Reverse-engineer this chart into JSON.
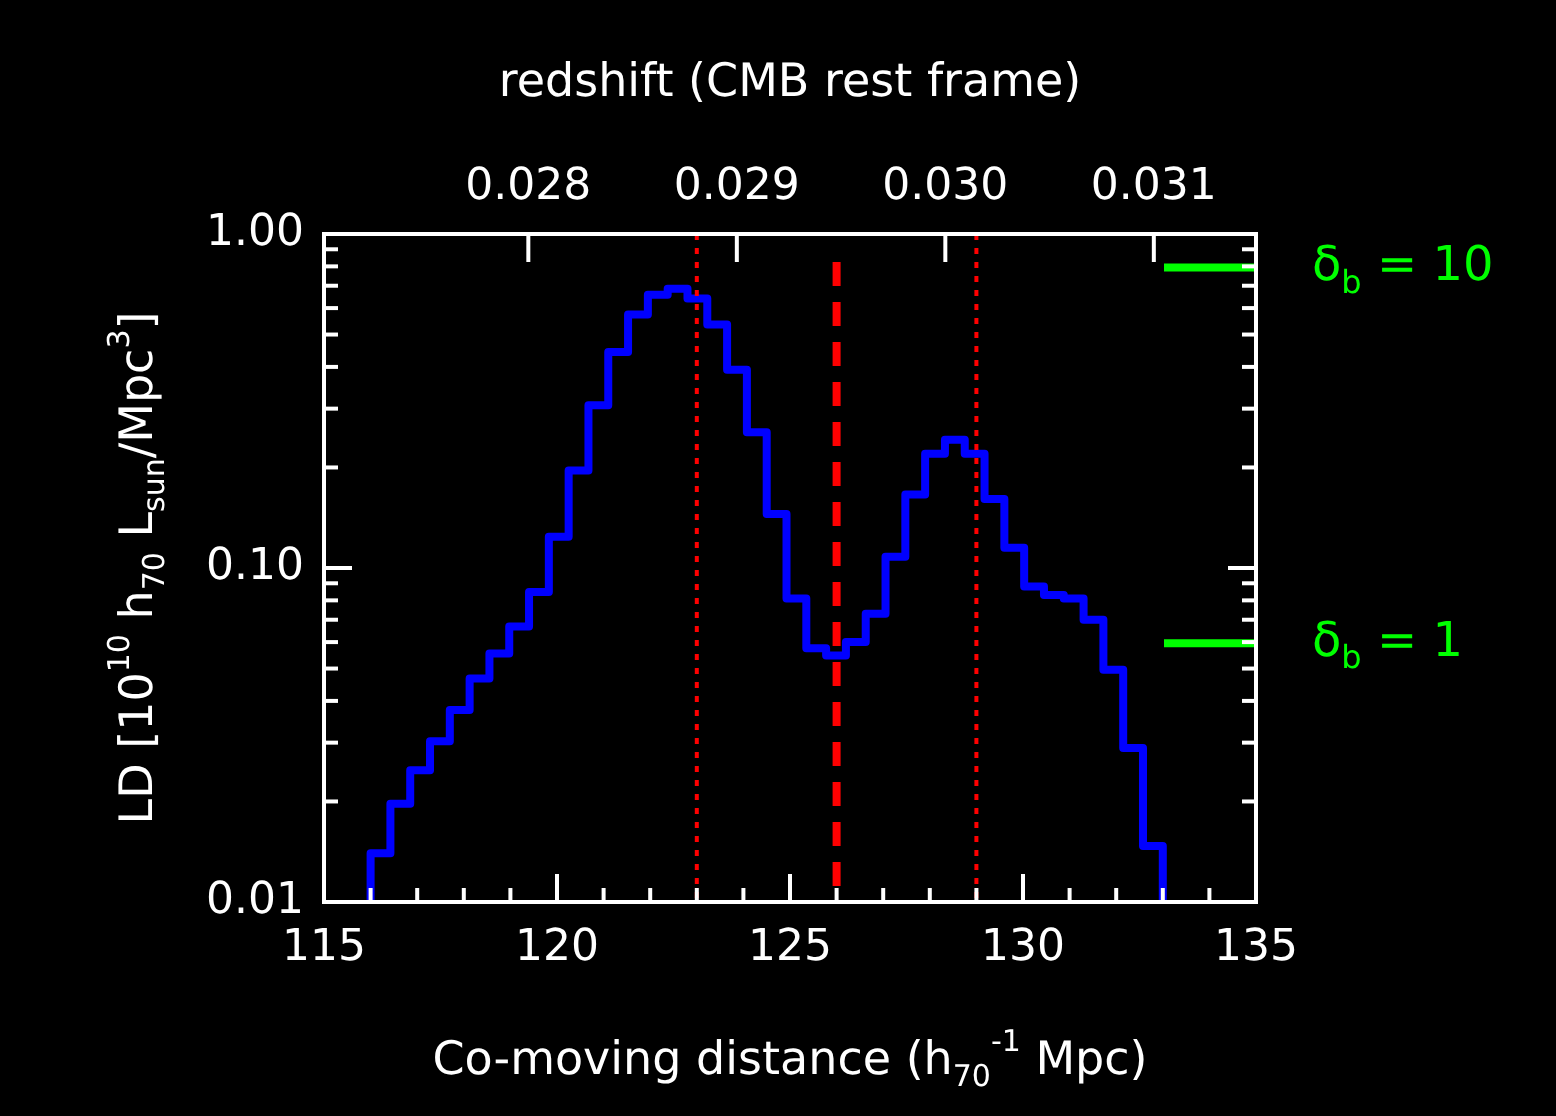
{
  "chart_data": {
    "type": "histogram",
    "xlabel": "Co-moving distance (h$_{70}$$^{-1}$ Mpc)",
    "ylabel": "LD [10$^{10}$ h$_{70}$ L$_{sun}$/Mpc$^{3}$]",
    "x2label": "redshift (CMB rest frame)",
    "bins": [
      116,
      116.425,
      116.85,
      117.275,
      117.7,
      118.125,
      118.55,
      118.975,
      119.4,
      119.825,
      120.25,
      120.675,
      121.1,
      121.525,
      121.95,
      122.375,
      122.8,
      123.225,
      123.65,
      124.075,
      124.5,
      124.925,
      125.35,
      125.775,
      126.2,
      126.625,
      127.05,
      127.475,
      127.9,
      128.325,
      128.75,
      129.175,
      129.6,
      130.025,
      130.45,
      130.875,
      131.3,
      131.725,
      132.15,
      132.575,
      133
    ],
    "values": [
      0.014,
      0.0197,
      0.0248,
      0.0303,
      0.0376,
      0.0467,
      0.0555,
      0.0668,
      0.0848,
      0.124,
      0.196,
      0.307,
      0.443,
      0.574,
      0.658,
      0.686,
      0.641,
      0.536,
      0.392,
      0.255,
      0.145,
      0.081,
      0.0575,
      0.0547,
      0.06,
      0.073,
      0.108,
      0.166,
      0.22,
      0.242,
      0.22,
      0.161,
      0.115,
      0.088,
      0.083,
      0.081,
      0.07,
      0.0496,
      0.0289,
      0.0147
    ],
    "color": "#0000ff",
    "log": "y",
    "grid": false,
    "legend": false,
    "xlim": [
      115,
      135
    ],
    "xticks": [
      115,
      {
        "value": 116,
        "label": null
      },
      {
        "value": 117,
        "label": null
      },
      {
        "value": 118,
        "label": null
      },
      {
        "value": 119,
        "label": null
      },
      120,
      {
        "value": 121,
        "label": null
      },
      {
        "value": 122,
        "label": null
      },
      {
        "value": 123,
        "label": null
      },
      {
        "value": 124,
        "label": null
      },
      125,
      {
        "value": 126,
        "label": null
      },
      {
        "value": 127,
        "label": null
      },
      {
        "value": 128,
        "label": null
      },
      {
        "value": 129,
        "label": null
      },
      130,
      {
        "value": 131,
        "label": null
      },
      {
        "value": 132,
        "label": null
      },
      {
        "value": 133,
        "label": null
      },
      {
        "value": 134,
        "label": null
      },
      135
    ],
    "ylim": [
      0.01,
      1
    ],
    "yticks": [
      0.01,
      {
        "value": 0.02,
        "label": null
      },
      {
        "value": 0.03,
        "label": null
      },
      {
        "value": 0.04,
        "label": null
      },
      {
        "value": 0.05,
        "label": null
      },
      {
        "value": 0.06,
        "label": null
      },
      {
        "value": 0.07,
        "label": null
      },
      {
        "value": 0.08,
        "label": null
      },
      {
        "value": 0.09,
        "label": null
      },
      {
        "value": 0.1,
        "label": "0.10"
      },
      {
        "value": 0.2,
        "label": null
      },
      {
        "value": 0.3,
        "label": null
      },
      {
        "value": 0.4,
        "label": null
      },
      {
        "value": 0.5,
        "label": null
      },
      {
        "value": 0.6,
        "label": null
      },
      {
        "value": 0.7,
        "label": null
      },
      {
        "value": 0.8,
        "label": null
      },
      {
        "value": 0.9,
        "label": null
      },
      {
        "value": 1,
        "label": "1.00"
      }
    ],
    "x2lim": [
      0.02702,
      0.03149
    ],
    "x2ticks": [
      0.028,
      0.029,
      {
        "value": 0.03,
        "label": "0.030"
      },
      0.031
    ],
    "ref_lines": [
      {
        "axis": "x",
        "value": 123,
        "color": "#ff0000",
        "line_style": "dotted"
      },
      {
        "axis": "x",
        "value": 126,
        "color": "#ff0000",
        "line_style": "dashed"
      },
      {
        "axis": "x",
        "value": 129,
        "color": "#ff0000",
        "line_style": "dotted"
      },
      {
        "axis": "y2",
        "value": 10,
        "label": "δ$_{b}$ = 10",
        "color": "#00ff00"
      },
      {
        "axis": "y2",
        "value": 1,
        "label": "δ$_{b}$ = 1",
        "color": "#00ff00"
      }
    ],
    "y2lim": [
      -5.2,
      10.8
    ]
  }
}
